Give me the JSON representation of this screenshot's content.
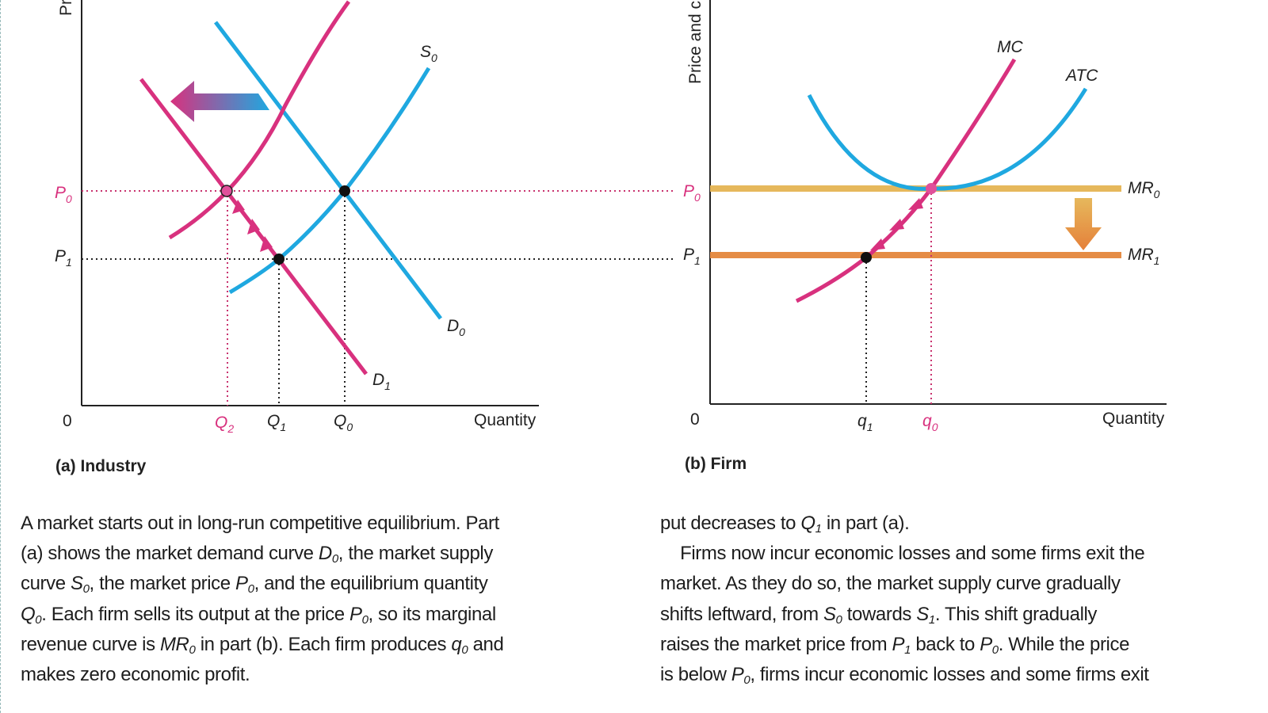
{
  "figure": {
    "panel_a": {
      "caption": "(a) Industry",
      "y_axis_label": "Pr",
      "x_axis_label": "Quantity",
      "origin": "0",
      "price_labels": [
        {
          "v": "P",
          "s": "0",
          "color": "pink"
        },
        {
          "v": "P",
          "s": "1",
          "color": "black"
        }
      ],
      "quantity_labels": [
        {
          "v": "Q",
          "s": "2",
          "color": "pink"
        },
        {
          "v": "Q",
          "s": "1",
          "color": "black"
        },
        {
          "v": "Q",
          "s": "0",
          "color": "black"
        }
      ],
      "curve_labels": {
        "S0": {
          "v": "S",
          "s": "0"
        },
        "D0": {
          "v": "D",
          "s": "0"
        },
        "D1": {
          "v": "D",
          "s": "1"
        }
      }
    },
    "panel_b": {
      "caption": "(b) Firm",
      "y_axis_label": "Price and c",
      "x_axis_label": "Quantity",
      "origin": "0",
      "price_labels": [
        {
          "v": "P",
          "s": "0",
          "color": "pink"
        },
        {
          "v": "P",
          "s": "1",
          "color": "black"
        }
      ],
      "quantity_labels": [
        {
          "v": "q",
          "s": "1",
          "color": "black"
        },
        {
          "v": "q",
          "s": "0",
          "color": "pink"
        }
      ],
      "curve_labels": {
        "MC": {
          "v": "MC",
          "s": ""
        },
        "ATC": {
          "v": "ATC",
          "s": ""
        },
        "MR0": {
          "v": "MR",
          "s": "0"
        },
        "MR1": {
          "v": "MR",
          "s": "1"
        }
      }
    },
    "colors": {
      "blue": "#1fa8e0",
      "pink": "#d8317e",
      "mr0": "#e6b85c",
      "mr1": "#e58c45",
      "point": "#111111"
    }
  },
  "text": {
    "left_column": [
      [
        "A market starts out in long-run competitive equilibrium. Part"
      ],
      [
        "(a) shows the market demand curve ",
        {
          "v": "D",
          "s": "0"
        },
        ", the market supply"
      ],
      [
        "curve ",
        {
          "v": "S",
          "s": "0"
        },
        ", the market price ",
        {
          "v": "P",
          "s": "0"
        },
        ", and the equilibrium quantity"
      ],
      [
        {
          "v": "Q",
          "s": "0"
        },
        ". Each firm sells its output at the price ",
        {
          "v": "P",
          "s": "0"
        },
        ", so its marginal"
      ],
      [
        "revenue curve is ",
        {
          "v": "MR",
          "s": "0"
        },
        " in part (b). Each firm produces ",
        {
          "v": "q",
          "s": "0"
        },
        " and"
      ],
      [
        "makes zero economic profit."
      ]
    ],
    "right_column": [
      [
        "put decreases to ",
        {
          "v": "Q",
          "s": "1"
        },
        " in part (a)."
      ],
      [
        "    Firms now incur economic losses and some firms exit the"
      ],
      [
        "market. As they do so, the market supply curve gradually"
      ],
      [
        "shifts leftward, from ",
        {
          "v": "S",
          "s": "0"
        },
        " towards ",
        {
          "v": "S",
          "s": "1"
        },
        ". This shift gradually"
      ],
      [
        "raises the market price from ",
        {
          "v": "P",
          "s": "1"
        },
        " back to ",
        {
          "v": "P",
          "s": "0"
        },
        ". While the price"
      ],
      [
        "is below ",
        {
          "v": "P",
          "s": "0"
        },
        ", firms incur economic losses and some firms exit"
      ]
    ]
  }
}
